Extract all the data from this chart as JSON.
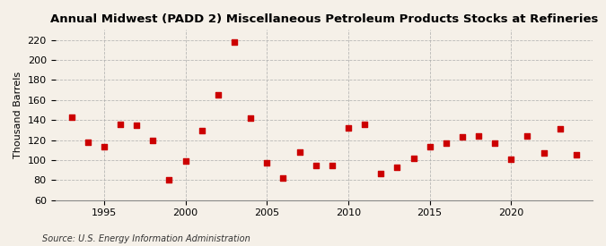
{
  "title": "Annual Midwest (PADD 2) Miscellaneous Petroleum Products Stocks at Refineries",
  "ylabel": "Thousand Barrels",
  "source": "Source: U.S. Energy Information Administration",
  "background_color": "#f5f0e8",
  "plot_background_color": "#f5f0e8",
  "marker_color": "#cc0000",
  "marker": "s",
  "marker_size": 25,
  "ylim": [
    60,
    230
  ],
  "yticks": [
    60,
    80,
    100,
    120,
    140,
    160,
    180,
    200,
    220
  ],
  "xlim_min": 1992,
  "xlim_max": 2025,
  "xticks": [
    1995,
    2000,
    2005,
    2010,
    2015,
    2020
  ],
  "years": [
    1993,
    1994,
    1995,
    1996,
    1997,
    1998,
    1999,
    2000,
    2001,
    2002,
    2003,
    2004,
    2005,
    2006,
    2007,
    2008,
    2009,
    2010,
    2011,
    2012,
    2013,
    2014,
    2015,
    2016,
    2017,
    2018,
    2019,
    2020,
    2021,
    2022,
    2023,
    2024
  ],
  "values": [
    143,
    118,
    113,
    136,
    135,
    120,
    80,
    99,
    129,
    165,
    218,
    142,
    97,
    82,
    108,
    95,
    95,
    132,
    136,
    87,
    93,
    102,
    113,
    117,
    123,
    124,
    117,
    101,
    124,
    107,
    131,
    105
  ]
}
